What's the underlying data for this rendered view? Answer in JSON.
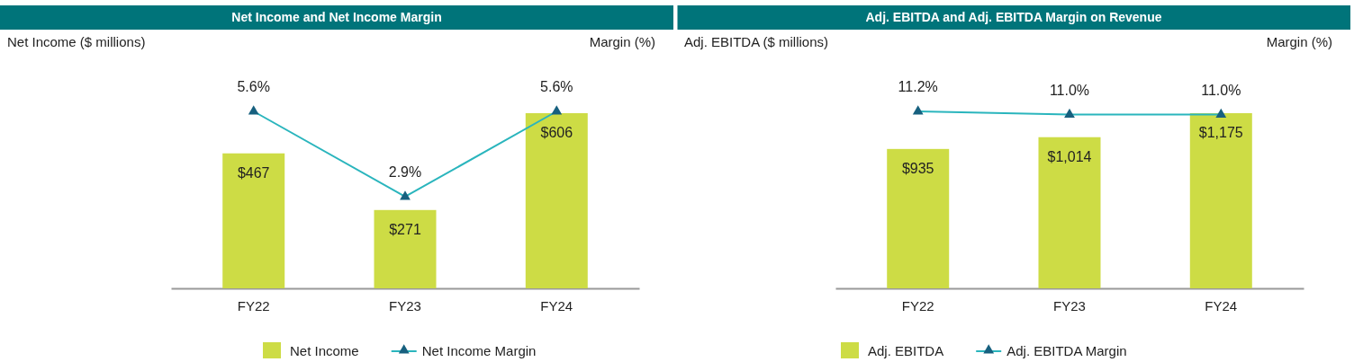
{
  "chart_data": [
    {
      "type": "bar",
      "title": "Net Income and Net Income Margin",
      "ylabel": "Net Income ($ millions)",
      "y2label": "Margin (%)",
      "categories": [
        "FY22",
        "FY23",
        "FY24"
      ],
      "tick_labels": "x",
      "legend": "bottom",
      "series": [
        {
          "name": "Net Income",
          "type": "bar",
          "color": "#cddc45",
          "values": [
            467,
            271,
            606
          ],
          "value_labels": [
            "$467",
            "$271",
            "$606"
          ]
        },
        {
          "name": "Net Income Margin",
          "type": "line",
          "axis": "y2",
          "marker": "triangle",
          "color": "#2ab5bd",
          "values": [
            5.6,
            2.9,
            5.6
          ],
          "value_labels": [
            "5.6%",
            "2.9%",
            "5.6%"
          ]
        }
      ]
    },
    {
      "type": "bar",
      "title": "Adj. EBITDA and Adj. EBITDA Margin on Revenue",
      "ylabel": "Adj. EBITDA ($ millions)",
      "y2label": "Margin (%)",
      "categories": [
        "FY22",
        "FY23",
        "FY24"
      ],
      "tick_labels": "x",
      "legend": "bottom",
      "series": [
        {
          "name": "Adj. EBITDA",
          "type": "bar",
          "color": "#cddc45",
          "values": [
            935,
            1014,
            1175
          ],
          "value_labels": [
            "$935",
            "$1,014",
            "$1,175"
          ]
        },
        {
          "name": "Adj. EBITDA Margin",
          "type": "line",
          "axis": "y2",
          "marker": "triangle",
          "color": "#2ab5bd",
          "values": [
            11.2,
            11.0,
            11.0
          ],
          "value_labels": [
            "11.2%",
            "11.0%",
            "11.0%"
          ]
        }
      ]
    }
  ]
}
